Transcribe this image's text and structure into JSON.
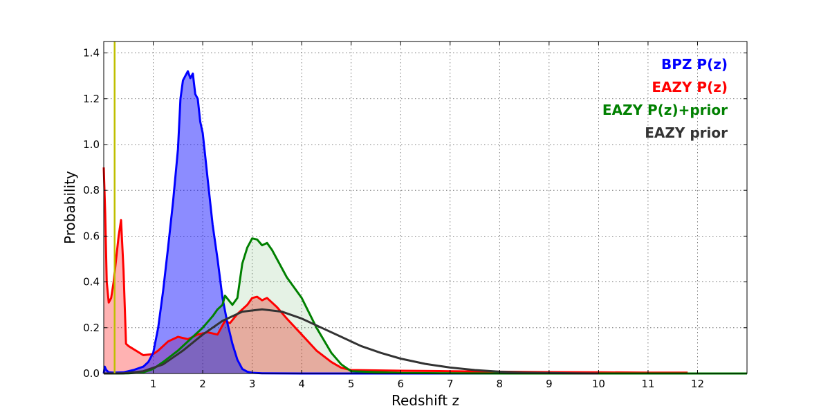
{
  "chart_data": {
    "type": "line",
    "title": "",
    "xlabel": "Redshift z",
    "ylabel": "Probability",
    "xlim": [
      0,
      13
    ],
    "ylim": [
      0,
      1.45
    ],
    "x_ticks": [
      1,
      2,
      3,
      4,
      5,
      6,
      7,
      8,
      9,
      10,
      11,
      12
    ],
    "y_ticks": [
      0.0,
      0.2,
      0.4,
      0.6,
      0.8,
      1.0,
      1.2,
      1.4
    ],
    "grid": true,
    "legend_position": "top-right",
    "vertical_marker": {
      "x": 0.22,
      "color": "#bfbf00"
    },
    "series": [
      {
        "name": "BPZ P(z)",
        "color": "#0000ff",
        "fill": true,
        "x": [
          0,
          0.02,
          0.05,
          0.1,
          0.2,
          0.4,
          0.6,
          0.8,
          0.9,
          1.0,
          1.1,
          1.2,
          1.3,
          1.4,
          1.5,
          1.55,
          1.6,
          1.65,
          1.7,
          1.75,
          1.8,
          1.85,
          1.9,
          1.95,
          2.0,
          2.05,
          2.1,
          2.2,
          2.3,
          2.4,
          2.5,
          2.6,
          2.7,
          2.8,
          2.9,
          3.0,
          3.2,
          4,
          6,
          8,
          10,
          12,
          13
        ],
        "y": [
          0.0,
          0.03,
          0.015,
          0.005,
          0.004,
          0.005,
          0.015,
          0.03,
          0.05,
          0.09,
          0.2,
          0.36,
          0.55,
          0.75,
          0.98,
          1.2,
          1.28,
          1.3,
          1.32,
          1.29,
          1.31,
          1.22,
          1.2,
          1.1,
          1.05,
          0.95,
          0.85,
          0.65,
          0.5,
          0.33,
          0.22,
          0.13,
          0.06,
          0.02,
          0.008,
          0.003,
          0.001,
          0.0,
          0.0,
          0.0,
          0.0,
          0.0,
          0.0
        ]
      },
      {
        "name": "EAZY P(z)",
        "color": "#ff0000",
        "fill": true,
        "x": [
          0,
          0.03,
          0.06,
          0.1,
          0.15,
          0.2,
          0.3,
          0.35,
          0.4,
          0.45,
          0.5,
          0.8,
          1.0,
          1.1,
          1.3,
          1.5,
          1.7,
          1.9,
          2.1,
          2.3,
          2.45,
          2.55,
          2.7,
          2.9,
          3.0,
          3.1,
          3.2,
          3.3,
          3.5,
          3.7,
          4.0,
          4.3,
          4.6,
          4.8,
          5.0,
          6,
          7,
          8,
          9,
          10,
          11,
          11.8
        ],
        "y": [
          0.9,
          0.7,
          0.4,
          0.31,
          0.33,
          0.4,
          0.6,
          0.67,
          0.45,
          0.13,
          0.12,
          0.08,
          0.085,
          0.1,
          0.14,
          0.16,
          0.15,
          0.17,
          0.18,
          0.17,
          0.23,
          0.22,
          0.26,
          0.3,
          0.33,
          0.335,
          0.32,
          0.33,
          0.29,
          0.24,
          0.17,
          0.1,
          0.05,
          0.025,
          0.015,
          0.012,
          0.01,
          0.008,
          0.006,
          0.005,
          0.004,
          0.004
        ]
      },
      {
        "name": "EAZY P(z)+prior",
        "color": "#008000",
        "fill": true,
        "x": [
          0,
          0.3,
          0.5,
          0.8,
          1.0,
          1.2,
          1.5,
          1.8,
          2.0,
          2.2,
          2.3,
          2.4,
          2.45,
          2.6,
          2.7,
          2.8,
          2.9,
          3.0,
          3.1,
          3.2,
          3.3,
          3.4,
          3.5,
          3.7,
          4.0,
          4.3,
          4.6,
          4.8,
          5.0,
          6,
          8,
          10,
          13
        ],
        "y": [
          0.0,
          0.0,
          0.001,
          0.005,
          0.02,
          0.05,
          0.1,
          0.16,
          0.2,
          0.25,
          0.28,
          0.3,
          0.34,
          0.3,
          0.33,
          0.48,
          0.55,
          0.59,
          0.585,
          0.56,
          0.57,
          0.54,
          0.5,
          0.42,
          0.33,
          0.2,
          0.09,
          0.04,
          0.01,
          0.002,
          0.0,
          0.0,
          0.0
        ]
      },
      {
        "name": "EAZY prior",
        "color": "#333333",
        "fill": false,
        "x": [
          0,
          0.4,
          0.8,
          1.2,
          1.6,
          2.0,
          2.4,
          2.8,
          3.2,
          3.6,
          4.0,
          4.4,
          4.8,
          5.2,
          5.6,
          6.0,
          6.5,
          7.0,
          7.5,
          8.0,
          8.5,
          9.0,
          9.5,
          10.0
        ],
        "y": [
          0.0,
          0.001,
          0.01,
          0.04,
          0.1,
          0.17,
          0.23,
          0.27,
          0.28,
          0.27,
          0.24,
          0.2,
          0.16,
          0.12,
          0.09,
          0.065,
          0.042,
          0.026,
          0.015,
          0.008,
          0.004,
          0.002,
          0.001,
          0.0
        ]
      }
    ]
  }
}
